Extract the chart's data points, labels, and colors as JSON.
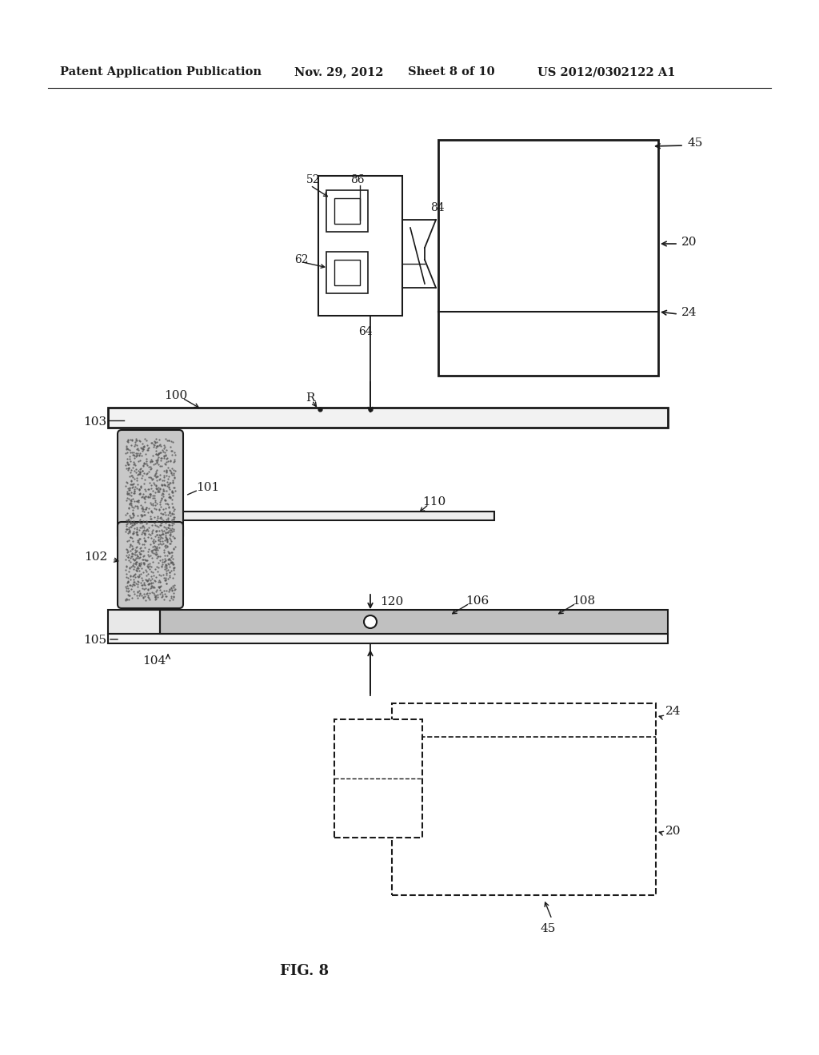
{
  "background_color": "#ffffff",
  "header_text": "Patent Application Publication",
  "header_date": "Nov. 29, 2012",
  "header_sheet": "Sheet 8 of 10",
  "header_patent": "US 2012/0302122 A1",
  "fig_label": "FIG. 8"
}
